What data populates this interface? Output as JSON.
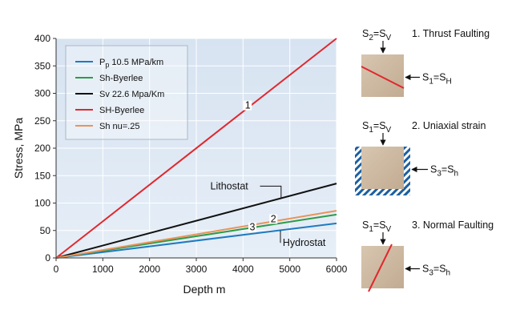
{
  "chart_data": {
    "type": "line",
    "xlabel": "Depth m",
    "ylabel": "Stress, MPa",
    "xlim": [
      0,
      6000
    ],
    "ylim": [
      0,
      400
    ],
    "xticks": [
      0,
      1000,
      2000,
      3000,
      4000,
      5000,
      6000
    ],
    "yticks": [
      0,
      50,
      100,
      150,
      200,
      250,
      300,
      350,
      400
    ],
    "grid": true,
    "legend_position": "top-left",
    "series": [
      {
        "name": "P",
        "name_sub": "p",
        "name_rest": " 10.5 MPa/km",
        "color": "#1f7bbf",
        "x": [
          0,
          6000
        ],
        "y": [
          0,
          63
        ]
      },
      {
        "name": "Sh-Byerlee",
        "color": "#2e9b48",
        "x": [
          0,
          6000
        ],
        "y": [
          0,
          79
        ]
      },
      {
        "name": "Sv 22.6 Mpa/Km",
        "color": "#111111",
        "x": [
          0,
          6000
        ],
        "y": [
          0,
          135.6
        ]
      },
      {
        "name": "SH-Byerlee",
        "color": "#e0282e",
        "x": [
          0,
          6000
        ],
        "y": [
          0,
          400
        ]
      },
      {
        "name": "Sh nu=.25",
        "color": "#e8935a",
        "x": [
          0,
          6000
        ],
        "y": [
          0,
          86
        ]
      }
    ],
    "annotations": [
      {
        "text": "1",
        "x": 4100,
        "y": 275
      },
      {
        "text": "2",
        "x": 4650,
        "y": 68
      },
      {
        "text": "3",
        "x": 4200,
        "y": 53
      },
      {
        "text": "Lithostat",
        "target_x": 4900,
        "target_y": 110,
        "label_x": 3300,
        "label_y": 125
      },
      {
        "text": "Hydrostat",
        "target_x": 4800,
        "target_y": 50,
        "label_x": 4850,
        "label_y": 22
      }
    ],
    "colors": {
      "plot_bg": "#dbe6f3",
      "grid": "#ffffff"
    }
  },
  "panels": [
    {
      "top_sub": "2",
      "top_sub2": "V",
      "title": "1. Thrust Faulting",
      "side_sub": "1",
      "side_sub2": "H",
      "fault": "thrust"
    },
    {
      "top_sub": "1",
      "top_sub2": "V",
      "title": "2. Uniaxial strain",
      "side_sub": "3",
      "side_sub2": "h",
      "fault": "uniaxial"
    },
    {
      "top_sub": "1",
      "top_sub2": "V",
      "title": "3. Normal Faulting",
      "side_sub": "3",
      "side_sub2": "h",
      "fault": "normal"
    }
  ],
  "colors": {
    "block": "#cdb8a0",
    "hatch": "#1c5fa0",
    "fault_line": "#e0282e"
  }
}
